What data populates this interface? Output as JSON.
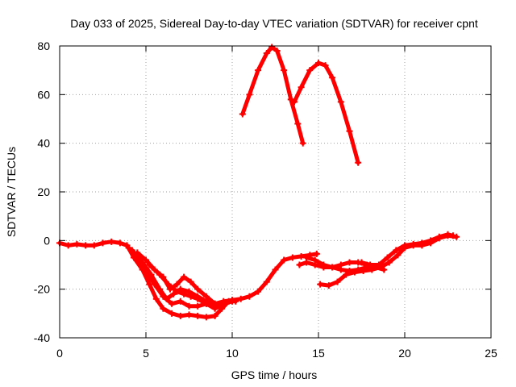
{
  "chart_data": {
    "type": "scatter",
    "title": "Day 033 of 2025, Sidereal Day-to-day VTEC variation (SDTVAR) for receiver cpnt",
    "xlabel": "GPS time / hours",
    "ylabel": "SDTVAR / TECUs",
    "xlim": [
      0,
      25
    ],
    "ylim": [
      -40,
      80
    ],
    "xticks": [
      0,
      5,
      10,
      15,
      20,
      25
    ],
    "yticks": [
      -40,
      -20,
      0,
      20,
      40,
      60,
      80
    ],
    "grid": true,
    "legend": "none",
    "marker": "plus",
    "color": "#ff0000",
    "series": [
      {
        "name": "track-1",
        "points": [
          [
            0,
            -1
          ],
          [
            0.5,
            -2
          ],
          [
            1,
            -1.5
          ],
          [
            1.5,
            -2
          ],
          [
            2,
            -2
          ],
          [
            2.5,
            -1
          ],
          [
            3,
            -0.5
          ],
          [
            3.5,
            -1
          ],
          [
            3.9,
            -2
          ],
          [
            4.3,
            -7
          ],
          [
            4.8,
            -12
          ],
          [
            5.2,
            -18
          ],
          [
            5.6,
            -24
          ],
          [
            6,
            -28
          ],
          [
            6.5,
            -30
          ],
          [
            7,
            -31
          ],
          [
            7.5,
            -30.5
          ],
          [
            8,
            -31
          ],
          [
            8.5,
            -31.5
          ],
          [
            9,
            -31
          ],
          [
            9.4,
            -28
          ],
          [
            9.8,
            -25
          ],
          [
            10.2,
            -25
          ]
        ]
      },
      {
        "name": "track-2",
        "points": [
          [
            4,
            -3
          ],
          [
            4.5,
            -8
          ],
          [
            5,
            -13
          ],
          [
            5.5,
            -18
          ],
          [
            6,
            -23
          ],
          [
            6.5,
            -26
          ],
          [
            7,
            -25
          ],
          [
            7.5,
            -27
          ],
          [
            8,
            -27
          ],
          [
            8.5,
            -26
          ],
          [
            9,
            -26
          ],
          [
            9.5,
            -25
          ],
          [
            10,
            -24.5
          ],
          [
            10.5,
            -24
          ],
          [
            11,
            -23
          ],
          [
            11.5,
            -21
          ],
          [
            12,
            -17
          ],
          [
            12.5,
            -12
          ],
          [
            13,
            -8
          ],
          [
            13.5,
            -7
          ],
          [
            14,
            -6.5
          ],
          [
            14.5,
            -6
          ],
          [
            14.9,
            -5.5
          ]
        ]
      },
      {
        "name": "track-3",
        "points": [
          [
            4.2,
            -4
          ],
          [
            4.8,
            -9
          ],
          [
            5.3,
            -14
          ],
          [
            5.8,
            -20
          ],
          [
            6.2,
            -24
          ],
          [
            6.6,
            -22
          ],
          [
            7,
            -20
          ],
          [
            7.5,
            -21
          ],
          [
            8,
            -23
          ],
          [
            8.5,
            -25
          ],
          [
            9,
            -27
          ],
          [
            9.5,
            -26
          ],
          [
            10,
            -25
          ]
        ]
      },
      {
        "name": "track-4",
        "points": [
          [
            4.5,
            -5
          ],
          [
            5,
            -8
          ],
          [
            5.5,
            -12
          ],
          [
            6,
            -15
          ],
          [
            6.4,
            -20
          ],
          [
            6.8,
            -18
          ],
          [
            7.2,
            -15
          ],
          [
            7.6,
            -17
          ],
          [
            8,
            -20
          ],
          [
            8.5,
            -23
          ],
          [
            9,
            -26
          ],
          [
            9.5,
            -25.5
          ]
        ]
      },
      {
        "name": "track-5",
        "points": [
          [
            5.2,
            -10
          ],
          [
            5.8,
            -14
          ],
          [
            6.3,
            -18
          ],
          [
            6.8,
            -21
          ],
          [
            7.2,
            -22
          ],
          [
            7.6,
            -23
          ],
          [
            8,
            -24
          ],
          [
            8.5,
            -26
          ],
          [
            9,
            -28
          ],
          [
            9.5,
            -26
          ],
          [
            10,
            -24.5
          ]
        ]
      },
      {
        "name": "track-6",
        "points": [
          [
            10.6,
            52
          ],
          [
            11,
            60
          ],
          [
            11.5,
            70
          ],
          [
            12,
            77
          ],
          [
            12.3,
            79.5
          ],
          [
            12.6,
            78
          ],
          [
            13,
            70
          ],
          [
            13.4,
            58
          ],
          [
            13.8,
            48
          ],
          [
            14.1,
            40
          ]
        ]
      },
      {
        "name": "track-7",
        "points": [
          [
            13.6,
            57
          ],
          [
            14,
            63
          ],
          [
            14.5,
            70
          ],
          [
            15,
            73
          ],
          [
            15.4,
            72
          ],
          [
            15.8,
            67
          ],
          [
            16.3,
            57
          ],
          [
            16.8,
            45
          ],
          [
            17.3,
            32
          ]
        ]
      },
      {
        "name": "track-8",
        "points": [
          [
            13.9,
            -10
          ],
          [
            14.3,
            -9
          ],
          [
            14.8,
            -10
          ],
          [
            15.3,
            -11
          ],
          [
            15.8,
            -11
          ],
          [
            16.3,
            -10
          ],
          [
            16.8,
            -9
          ],
          [
            17.3,
            -9
          ],
          [
            17.8,
            -10
          ],
          [
            18.3,
            -11
          ],
          [
            18.8,
            -12
          ]
        ]
      },
      {
        "name": "track-9",
        "points": [
          [
            14.3,
            -7
          ],
          [
            14.8,
            -8
          ],
          [
            15.3,
            -10
          ],
          [
            15.8,
            -11
          ],
          [
            16.3,
            -12
          ],
          [
            16.8,
            -12.5
          ],
          [
            17.3,
            -12
          ],
          [
            17.8,
            -11
          ]
        ]
      },
      {
        "name": "track-10",
        "points": [
          [
            15.1,
            -18
          ],
          [
            15.6,
            -18.5
          ],
          [
            16.1,
            -17
          ],
          [
            16.6,
            -14
          ],
          [
            17.1,
            -13
          ],
          [
            17.6,
            -12.5
          ],
          [
            18.1,
            -12
          ],
          [
            18.6,
            -11
          ],
          [
            19.1,
            -9
          ],
          [
            19.6,
            -6
          ],
          [
            20,
            -3
          ],
          [
            20.5,
            -2
          ],
          [
            21,
            -2
          ],
          [
            21.5,
            -1
          ],
          [
            22,
            1
          ],
          [
            22.5,
            2
          ],
          [
            23,
            1.5
          ]
        ]
      },
      {
        "name": "track-11",
        "points": [
          [
            17.5,
            -9
          ],
          [
            18,
            -10
          ],
          [
            18.5,
            -10
          ],
          [
            19,
            -7
          ],
          [
            19.5,
            -4
          ],
          [
            20,
            -2
          ],
          [
            20.5,
            -1.5
          ],
          [
            21,
            -1
          ],
          [
            21.5,
            0
          ],
          [
            22,
            1.5
          ],
          [
            22.5,
            2.5
          ],
          [
            22.8,
            2
          ]
        ]
      }
    ]
  }
}
